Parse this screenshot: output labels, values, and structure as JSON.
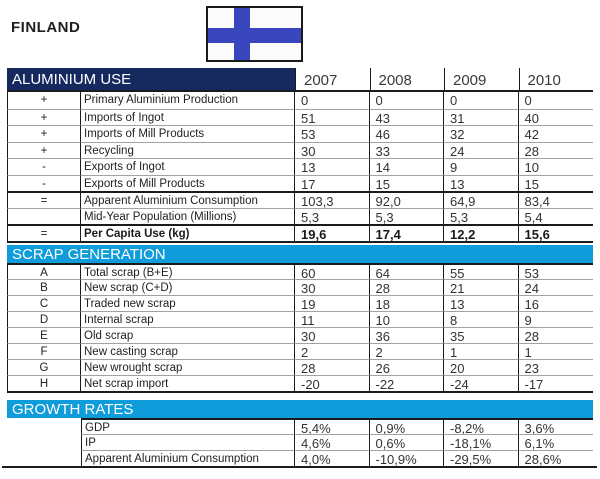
{
  "page": {
    "country": "FINLAND"
  },
  "colors": {
    "navy_band": "#16295f",
    "cyan_band": "#0f9cdb",
    "flag_blue": "#3a46bd"
  },
  "flag": {
    "name": "flag-of-finland"
  },
  "years": [
    "2007",
    "2008",
    "2009",
    "2010"
  ],
  "sections": [
    {
      "id": "aluminium-use",
      "title": "ALUMINIUM USE",
      "band_style": "navy",
      "rows": [
        {
          "sym": "+",
          "label": "Primary Aluminium Production",
          "values": [
            "0",
            "0",
            "0",
            "0"
          ]
        },
        {
          "sym": "+",
          "label": "Imports of Ingot",
          "values": [
            "51",
            "43",
            "31",
            "40"
          ]
        },
        {
          "sym": "+",
          "label": "Imports of Mill Products",
          "values": [
            "53",
            "46",
            "32",
            "42"
          ]
        },
        {
          "sym": "+",
          "label": "Recycling",
          "values": [
            "30",
            "33",
            "24",
            "28"
          ]
        },
        {
          "sym": "-",
          "label": "Exports of Ingot",
          "values": [
            "13",
            "14",
            "9",
            "10"
          ]
        },
        {
          "sym": "-",
          "label": "Exports of Mill Products",
          "values": [
            "17",
            "15",
            "13",
            "15"
          ]
        },
        {
          "sym": "=",
          "label": "Apparent Aluminium Consumption",
          "values": [
            "103,3",
            "92,0",
            "64,9",
            "83,4"
          ],
          "top": "black"
        },
        {
          "sym": "",
          "label": "Mid-Year Population (Millions)",
          "values": [
            "5,3",
            "5,3",
            "5,3",
            "5,4"
          ]
        },
        {
          "sym": "=",
          "label": "Per Capita Use (kg)",
          "values": [
            "19,6",
            "17,4",
            "12,2",
            "15,6"
          ],
          "top": "black",
          "bold": true
        }
      ]
    },
    {
      "id": "scrap-generation",
      "title": "SCRAP GENERATION",
      "band_style": "cyan",
      "rows": [
        {
          "sym": "A",
          "label": "Total scrap (B+E)",
          "values": [
            "60",
            "64",
            "55",
            "53"
          ],
          "top": "black"
        },
        {
          "sym": "B",
          "label": "New scrap (C+D)",
          "values": [
            "30",
            "28",
            "21",
            "24"
          ]
        },
        {
          "sym": "C",
          "label": "Traded new scrap",
          "values": [
            "19",
            "18",
            "13",
            "16"
          ]
        },
        {
          "sym": "D",
          "label": "Internal scrap",
          "values": [
            "11",
            "10",
            "8",
            "9"
          ]
        },
        {
          "sym": "E",
          "label": "Old scrap",
          "values": [
            "30",
            "36",
            "35",
            "28"
          ]
        },
        {
          "sym": "F",
          "label": "New casting scrap",
          "values": [
            "2",
            "2",
            "1",
            "1"
          ]
        },
        {
          "sym": "G",
          "label": "New wrought scrap",
          "values": [
            "28",
            "26",
            "20",
            "23"
          ]
        },
        {
          "sym": "H",
          "label": "Net scrap import",
          "values": [
            "-20",
            "-22",
            "-24",
            "-17"
          ]
        }
      ]
    },
    {
      "id": "growth-rates",
      "title": "GROWTH RATES",
      "band_style": "cyan",
      "rows": [
        {
          "sym": "",
          "label": "GDP",
          "values": [
            "5,4%",
            "0,9%",
            "-8,2%",
            "3,6%"
          ],
          "top": "black"
        },
        {
          "sym": "",
          "label": "IP",
          "values": [
            "4,6%",
            "0,6%",
            "-18,1%",
            "6,1%"
          ]
        },
        {
          "sym": "",
          "label": "Apparent Aluminium Consumption",
          "values": [
            "4,0%",
            "-10,9%",
            "-29,5%",
            "28,6%"
          ]
        }
      ]
    }
  ]
}
